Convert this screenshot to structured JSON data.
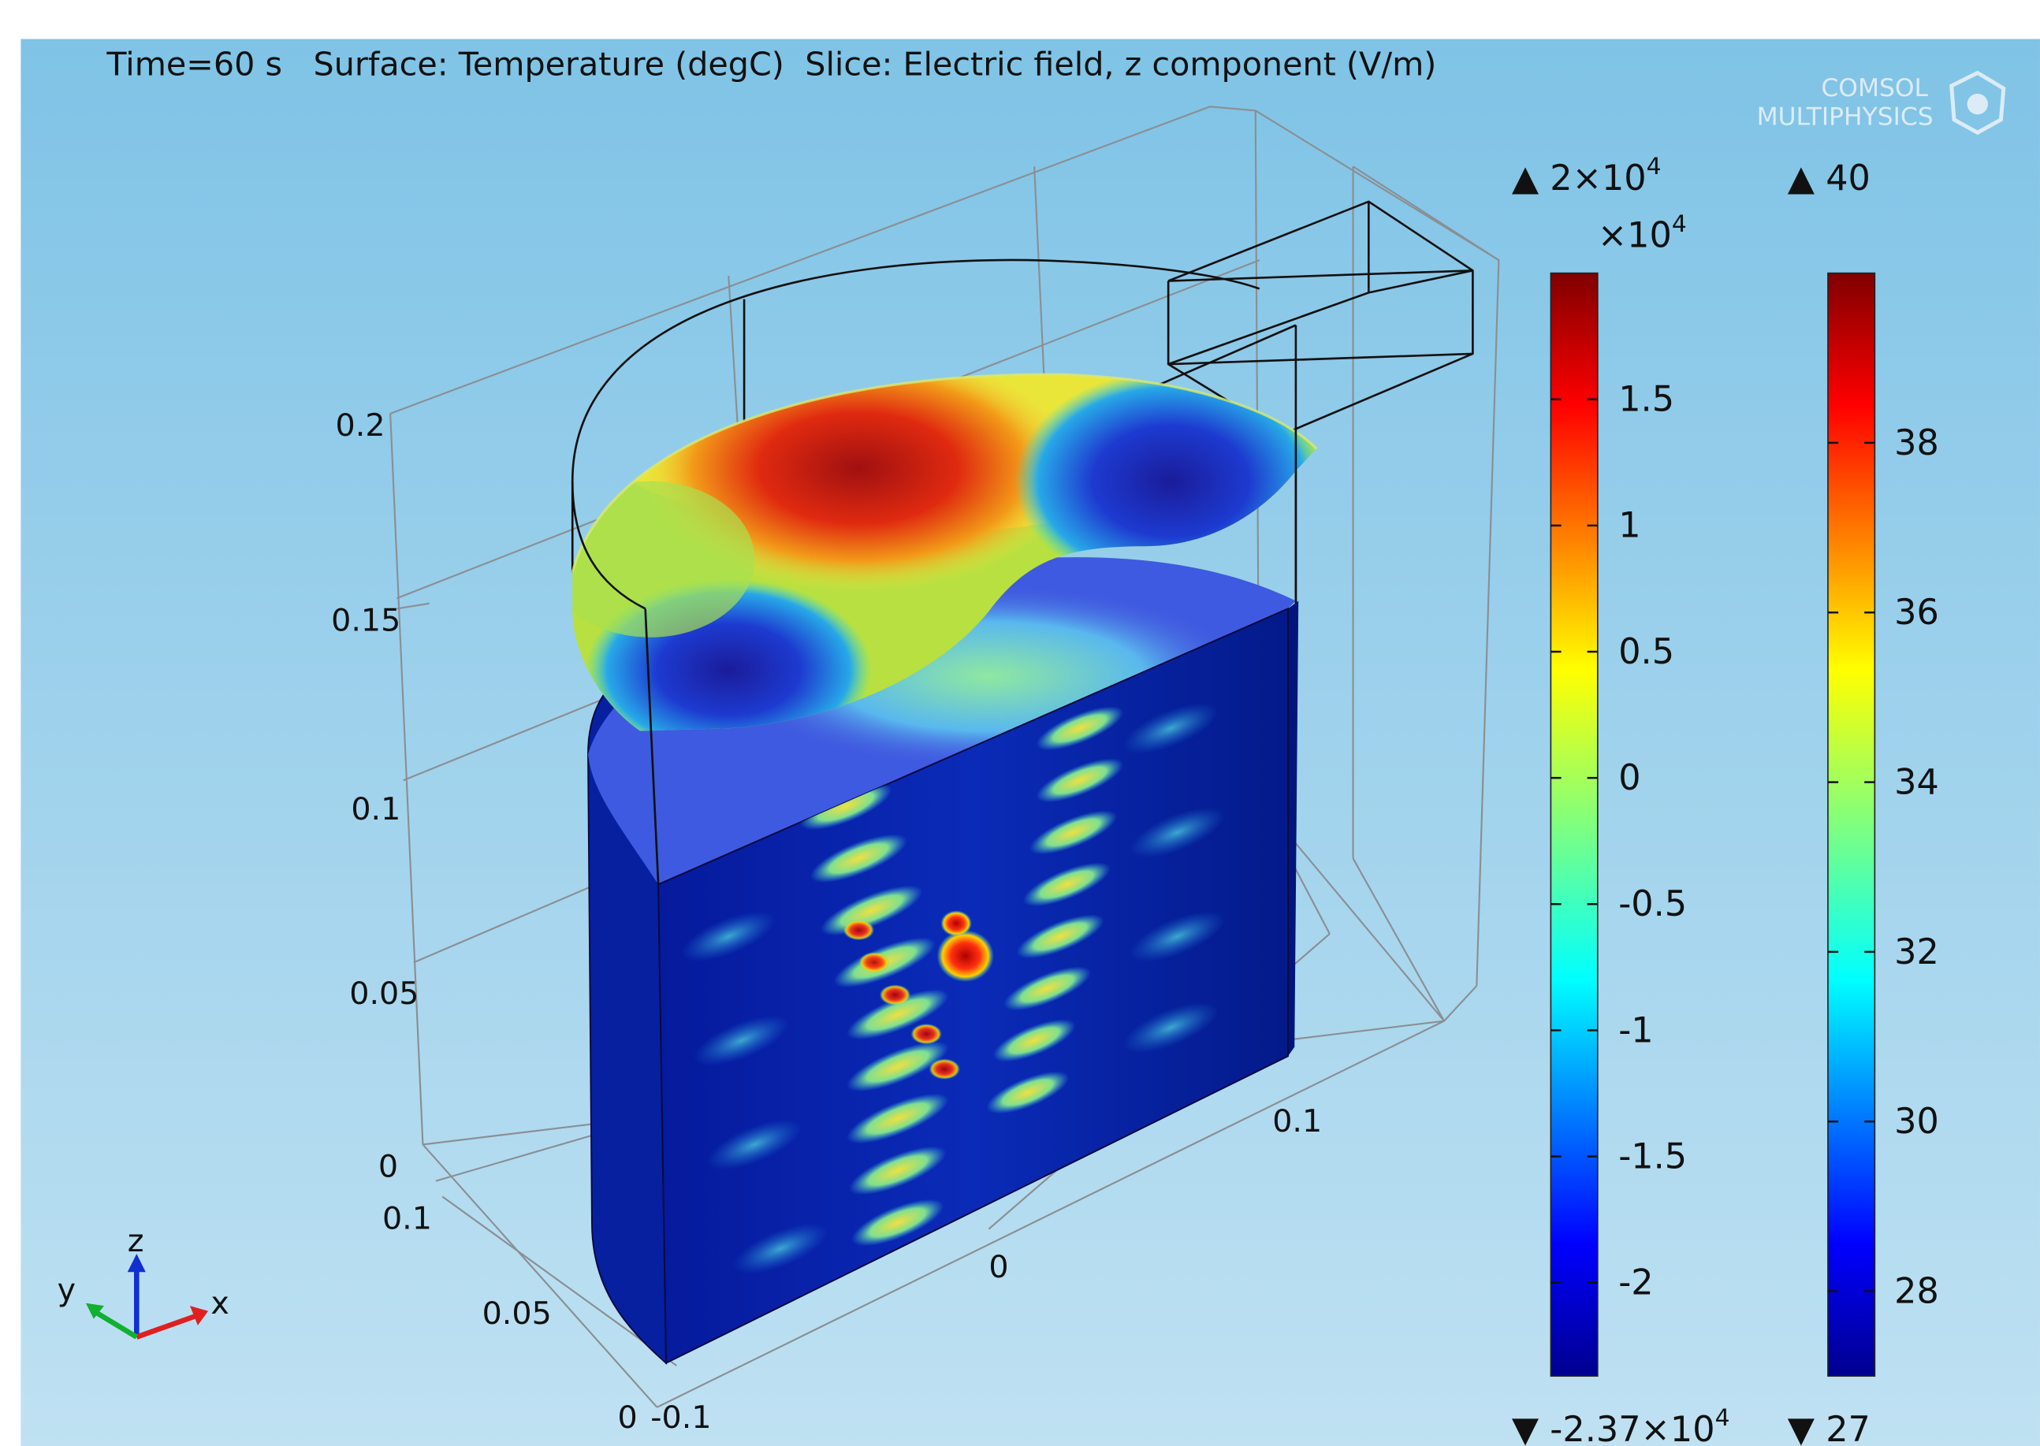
{
  "title": {
    "time": "Time=60 s",
    "surface": "Surface: Temperature (degC)",
    "slice": "Slice: Electric field, z component (V/m)"
  },
  "logo": {
    "line1": "COMSOL",
    "line2": "MULTIPHYSICS"
  },
  "axes": {
    "z_ticks": [
      "0.2",
      "0.15",
      "0.1",
      "0.05",
      "0"
    ],
    "y_ticks": [
      "0.1",
      "0.05",
      "0"
    ],
    "x_ticks": [
      "-0.1",
      "0",
      "0.1"
    ],
    "triad": {
      "x": "x",
      "y": "y",
      "z": "z"
    }
  },
  "colorbar_field": {
    "max_label": "▲ 2×10",
    "max_exp": "4",
    "multiplier": "×10",
    "multiplier_exp": "4",
    "ticks": [
      "1.5",
      "1",
      "0.5",
      "0",
      "-0.5",
      "-1",
      "-1.5",
      "-2"
    ],
    "tick_values": [
      1.5,
      1,
      0.5,
      0,
      -0.5,
      -1,
      -1.5,
      -2
    ],
    "min_label": "▼ -2.37×10",
    "min_exp": "4",
    "range": [
      -2.37,
      2.0
    ]
  },
  "colorbar_temp": {
    "max_label": "▲ 40",
    "ticks": [
      "38",
      "36",
      "34",
      "32",
      "30",
      "28"
    ],
    "tick_values": [
      38,
      36,
      34,
      32,
      30,
      28
    ],
    "min_label": "▼ 27",
    "range": [
      27,
      40
    ]
  },
  "colors": {
    "background_top": "#7fc3e6",
    "background_bottom": "#bfe1f2",
    "wire": "#111111",
    "grid": "#8a8f94"
  }
}
